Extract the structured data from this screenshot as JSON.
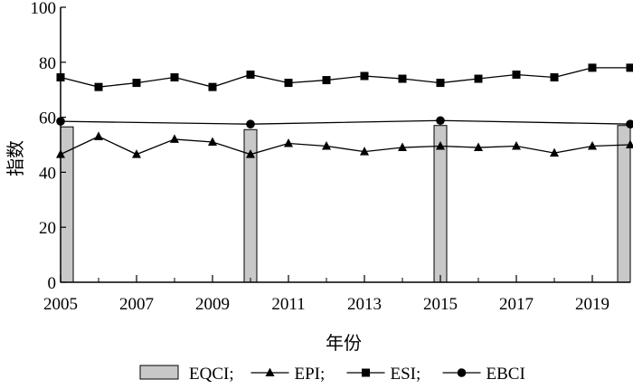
{
  "chart_data": {
    "type": "line",
    "xlabel": "年份",
    "ylabel": "指数",
    "xlim": [
      2005,
      2020
    ],
    "ylim": [
      0,
      100
    ],
    "x_ticks": [
      2005,
      2007,
      2009,
      2011,
      2013,
      2015,
      2017,
      2019
    ],
    "x_tick_labels": [
      "2005",
      "2007",
      "2009",
      "2011",
      "2013",
      "2015",
      "2017",
      "2019"
    ],
    "y_ticks": [
      0,
      20,
      40,
      60,
      80,
      100
    ],
    "y_tick_labels": [
      "0",
      "20",
      "40",
      "60",
      "80",
      "100"
    ],
    "grid": false,
    "legend_position": "bottom",
    "series": [
      {
        "name": "EQCI",
        "kind": "bar",
        "color": "#c8c8c8",
        "points": [
          {
            "x": 2005,
            "y": 56.5
          },
          {
            "x": 2010,
            "y": 55.5
          },
          {
            "x": 2015,
            "y": 57.0
          },
          {
            "x": 2020,
            "y": 57.0
          }
        ]
      },
      {
        "name": "EPI",
        "kind": "line",
        "marker": "triangle",
        "color": "#000000",
        "points": [
          {
            "x": 2005,
            "y": 46.5
          },
          {
            "x": 2006,
            "y": 53.0
          },
          {
            "x": 2007,
            "y": 46.5
          },
          {
            "x": 2008,
            "y": 52.0
          },
          {
            "x": 2009,
            "y": 51.0
          },
          {
            "x": 2010,
            "y": 46.5
          },
          {
            "x": 2011,
            "y": 50.5
          },
          {
            "x": 2012,
            "y": 49.5
          },
          {
            "x": 2013,
            "y": 47.5
          },
          {
            "x": 2014,
            "y": 49.0
          },
          {
            "x": 2015,
            "y": 49.5
          },
          {
            "x": 2016,
            "y": 49.0
          },
          {
            "x": 2017,
            "y": 49.5
          },
          {
            "x": 2018,
            "y": 47.0
          },
          {
            "x": 2019,
            "y": 49.5
          },
          {
            "x": 2020,
            "y": 50.0
          }
        ]
      },
      {
        "name": "ESI",
        "kind": "line",
        "marker": "square",
        "color": "#000000",
        "points": [
          {
            "x": 2005,
            "y": 74.5
          },
          {
            "x": 2006,
            "y": 71.0
          },
          {
            "x": 2007,
            "y": 72.5
          },
          {
            "x": 2008,
            "y": 74.5
          },
          {
            "x": 2009,
            "y": 71.0
          },
          {
            "x": 2010,
            "y": 75.5
          },
          {
            "x": 2011,
            "y": 72.5
          },
          {
            "x": 2012,
            "y": 73.5
          },
          {
            "x": 2013,
            "y": 75.0
          },
          {
            "x": 2014,
            "y": 74.0
          },
          {
            "x": 2015,
            "y": 72.5
          },
          {
            "x": 2016,
            "y": 74.0
          },
          {
            "x": 2017,
            "y": 75.5
          },
          {
            "x": 2018,
            "y": 74.5
          },
          {
            "x": 2019,
            "y": 78.0
          },
          {
            "x": 2020,
            "y": 78.0
          }
        ]
      },
      {
        "name": "EBCI",
        "kind": "line",
        "marker": "circle",
        "color": "#000000",
        "points": [
          {
            "x": 2005,
            "y": 58.5
          },
          {
            "x": 2010,
            "y": 57.5
          },
          {
            "x": 2015,
            "y": 58.8
          },
          {
            "x": 2020,
            "y": 57.5
          }
        ]
      }
    ]
  },
  "legend": {
    "items": [
      {
        "label": "EQCI;",
        "symbol": "bar"
      },
      {
        "label": "EPI;",
        "symbol": "triangle"
      },
      {
        "label": "ESI;",
        "symbol": "square"
      },
      {
        "label": "EBCI",
        "symbol": "circle"
      }
    ]
  }
}
